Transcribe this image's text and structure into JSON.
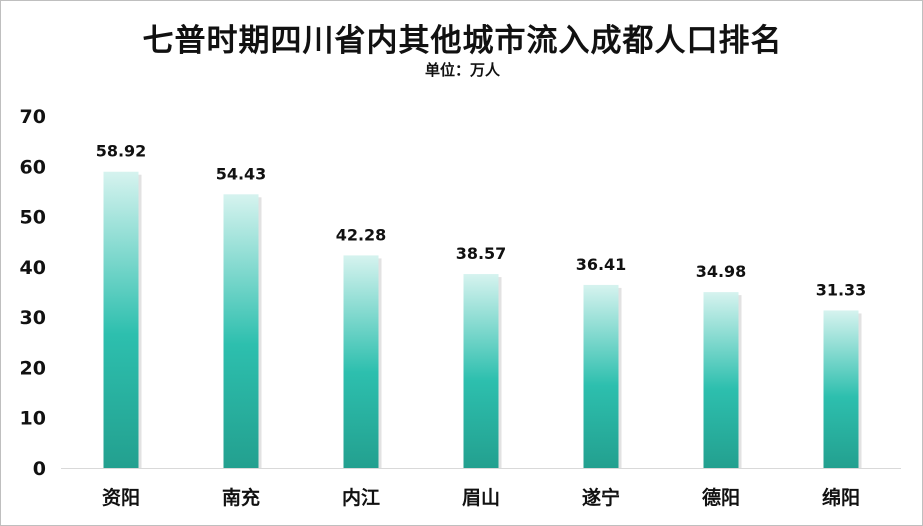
{
  "chart_data": {
    "type": "bar",
    "title": "七普时期四川省内其他城市流入成都人口排名",
    "subtitle": "单位：万人",
    "categories": [
      "资阳",
      "南充",
      "内江",
      "眉山",
      "遂宁",
      "德阳",
      "绵阳"
    ],
    "values": [
      58.92,
      54.43,
      42.28,
      38.57,
      36.41,
      34.98,
      31.33
    ],
    "value_labels": [
      "58.92",
      "54.43",
      "42.28",
      "38.57",
      "36.41",
      "34.98",
      "31.33"
    ],
    "ylim": [
      0,
      70
    ],
    "yticks": [
      0,
      10,
      20,
      30,
      40,
      50,
      60,
      70
    ],
    "grid": false,
    "legend": "none",
    "bar_color_top": "#d6f3ef",
    "bar_color_mid": "#2dbfae",
    "bar_color_bottom": "#23a08f"
  }
}
